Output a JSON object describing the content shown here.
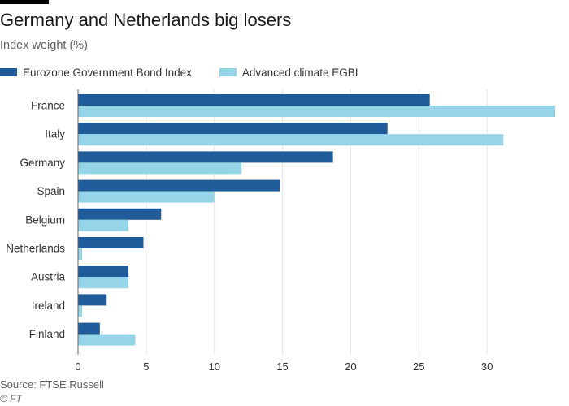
{
  "header": {
    "title": "Germany and Netherlands big losers",
    "subtitle": "Index weight (%)"
  },
  "footer": {
    "source": "Source: FTSE Russell",
    "credit": "© FT"
  },
  "colors": {
    "series_1": "#1f5c99",
    "series_2": "#96d4e8",
    "grid": "#e9e5e1",
    "axis": "#66605c",
    "text": "#33302e"
  },
  "chart_data": {
    "type": "bar",
    "orientation": "horizontal",
    "title": "Germany and Netherlands big losers",
    "subtitle": "Index weight (%)",
    "categories": [
      "France",
      "Italy",
      "Germany",
      "Spain",
      "Belgium",
      "Netherlands",
      "Austria",
      "Ireland",
      "Finland"
    ],
    "series": [
      {
        "name": "Eurozone Government Bond Index",
        "values": [
          25.8,
          22.7,
          18.7,
          14.8,
          6.1,
          4.8,
          3.7,
          2.1,
          1.6
        ]
      },
      {
        "name": "Advanced climate EGBI",
        "values": [
          35.0,
          31.2,
          12.0,
          10.0,
          3.7,
          0.3,
          3.7,
          0.3,
          4.2
        ]
      }
    ],
    "xticks": [
      0,
      5,
      10,
      15,
      20,
      25,
      30
    ],
    "xlim": [
      0,
      35
    ],
    "xlabel": "",
    "ylabel": "",
    "grid": true,
    "legend": "top-left"
  }
}
